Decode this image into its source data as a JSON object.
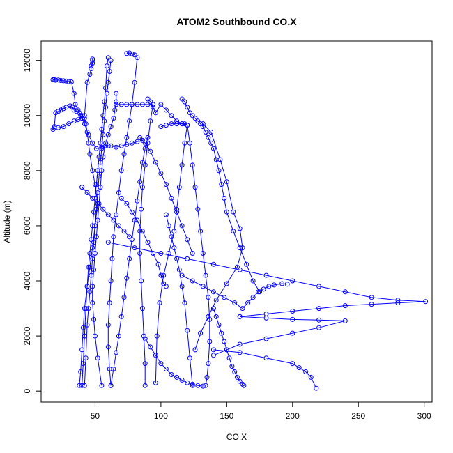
{
  "chart_data": {
    "type": "line",
    "title": "ATOM2 Southbound CO.X",
    "xlabel": "CO.X",
    "ylabel": "Altitude (m)",
    "xlim": [
      9,
      306
    ],
    "ylim": [
      -400,
      12700
    ],
    "x_ticks": [
      50,
      100,
      150,
      200,
      250,
      300
    ],
    "y_ticks": [
      0,
      2000,
      4000,
      6000,
      8000,
      10000,
      12000
    ],
    "grid": false,
    "legend": "none",
    "line_color": "#0000ff",
    "marker": "open-circle",
    "series": [
      {
        "x": [
          38,
          39,
          40,
          41,
          42,
          44,
          46,
          48,
          50,
          52,
          50,
          48,
          46,
          45,
          44,
          43,
          42,
          40,
          38,
          36,
          34,
          33,
          31,
          28,
          26,
          24,
          22,
          20,
          19,
          18,
          19,
          22,
          26,
          30,
          34,
          37,
          40,
          42,
          44,
          46,
          47,
          47,
          48,
          48,
          48
        ],
        "y": [
          200,
          700,
          1500,
          2300,
          3000,
          3800,
          4500,
          5200,
          6000,
          6800,
          7500,
          8000,
          8600,
          9000,
          9400,
          9700,
          9900,
          10000,
          10100,
          10150,
          10200,
          10300,
          10350,
          10300,
          10250,
          10200,
          10150,
          10100,
          9600,
          9500,
          9550,
          9560,
          9600,
          9700,
          9800,
          9850,
          9900,
          10000,
          11200,
          11500,
          11700,
          11800,
          11900,
          12000,
          12050
        ]
      },
      {
        "x": [
          18,
          19,
          20,
          22,
          24,
          26,
          28,
          30,
          32,
          34,
          35,
          37,
          39,
          42,
          45,
          48,
          51,
          55,
          58,
          60
        ],
        "y": [
          11300,
          11300,
          11280,
          11290,
          11270,
          11260,
          11250,
          11230,
          11220,
          10800,
          10400,
          10200,
          10000,
          9700,
          9300,
          9000,
          8800,
          8850,
          8900,
          8900
        ]
      },
      {
        "x": [
          60,
          59,
          58,
          57,
          56,
          55,
          54,
          53,
          52,
          51,
          50,
          49,
          48,
          47,
          46,
          45,
          44,
          43,
          42,
          41,
          40
        ],
        "y": [
          12100,
          11800,
          11000,
          10500,
          10000,
          9500,
          9000,
          8500,
          8000,
          7500,
          7000,
          6500,
          6000,
          5500,
          5000,
          4500,
          3800,
          3000,
          2000,
          1000,
          200
        ]
      },
      {
        "x": [
          62,
          61,
          60,
          59,
          58,
          57,
          56,
          55,
          54,
          53,
          52,
          51,
          50,
          49,
          48,
          47,
          46,
          45,
          44,
          43,
          42
        ],
        "y": [
          12000,
          11600,
          11200,
          10800,
          10300,
          9800,
          9300,
          8800,
          8300,
          7800,
          7200,
          6600,
          6000,
          5400,
          4800,
          4200,
          3600,
          3000,
          2400,
          1200,
          200
        ]
      },
      {
        "x": [
          66,
          66,
          65,
          64,
          62,
          60,
          58,
          56,
          55,
          54,
          53,
          52,
          51,
          50,
          49,
          48,
          48,
          49,
          50,
          52,
          55
        ],
        "y": [
          10800,
          10500,
          10200,
          9900,
          9600,
          9300,
          9000,
          8500,
          8000,
          7400,
          6800,
          6200,
          5600,
          5000,
          4400,
          3800,
          3200,
          2600,
          2000,
          1200,
          200
        ]
      },
      {
        "x": [
          74,
          76,
          78,
          80,
          82,
          80,
          78,
          76,
          74,
          72,
          70,
          68,
          66,
          64,
          63,
          62,
          61,
          60,
          60,
          61,
          62
        ],
        "y": [
          12250,
          12270,
          12240,
          12200,
          12100,
          11200,
          10400,
          9800,
          9200,
          8600,
          8000,
          7200,
          6400,
          5600,
          4800,
          4000,
          3200,
          2400,
          1600,
          800,
          200
        ]
      },
      {
        "x": [
          58,
          62,
          66,
          70,
          74,
          78,
          82,
          86,
          90,
          88,
          86,
          84,
          82,
          80,
          78,
          76,
          74,
          72,
          70,
          68,
          66,
          64,
          62
        ],
        "y": [
          8900,
          8900,
          8850,
          8900,
          8950,
          9000,
          9050,
          9100,
          9200,
          8800,
          8300,
          7600,
          6900,
          6200,
          5500,
          4800,
          4100,
          3400,
          2700,
          2000,
          1400,
          800,
          200
        ]
      },
      {
        "x": [
          66,
          70,
          74,
          78,
          82,
          86,
          90,
          94,
          92,
          90,
          88,
          86,
          85,
          84,
          84,
          85,
          86,
          87,
          88,
          88
        ],
        "y": [
          10400,
          10400,
          10400,
          10400,
          10400,
          10400,
          10400,
          10400,
          9800,
          9000,
          8200,
          7400,
          6600,
          5800,
          5000,
          4000,
          3000,
          2000,
          1000,
          200
        ]
      },
      {
        "x": [
          90,
          92,
          94,
          96,
          100,
          104,
          108,
          112,
          116,
          120,
          118,
          116,
          114,
          112,
          110,
          106,
          102,
          99,
          97,
          96
        ],
        "y": [
          10600,
          10500,
          10300,
          10100,
          10400,
          10200,
          10000,
          9800,
          9700,
          9650,
          9000,
          8200,
          7400,
          6600,
          5800,
          5000,
          4200,
          3200,
          2000,
          300
        ]
      },
      {
        "x": [
          100,
          104,
          108,
          112,
          116,
          118,
          120,
          122,
          124,
          126,
          128,
          130,
          132,
          134,
          136,
          137,
          137,
          136,
          135,
          134
        ],
        "y": [
          9600,
          9650,
          9700,
          9700,
          9700,
          9700,
          9650,
          9000,
          8200,
          7400,
          6600,
          5800,
          5000,
          4200,
          3400,
          2600,
          1800,
          1000,
          500,
          200
        ]
      },
      {
        "x": [
          116,
          118,
          120,
          122,
          124,
          126,
          128,
          130,
          132,
          134,
          136,
          138,
          140,
          142,
          144,
          146,
          148,
          150,
          155,
          160,
          165,
          170,
          175
        ],
        "y": [
          10600,
          10500,
          10300,
          10100,
          10000,
          9900,
          9800,
          9700,
          9600,
          9400,
          9200,
          9000,
          8800,
          8400,
          8000,
          7500,
          7000,
          6500,
          5800,
          5200,
          4600,
          4000,
          3600
        ]
      },
      {
        "x": [
          132,
          138,
          145,
          150,
          155,
          160,
          162,
          158,
          150,
          142,
          136,
          130,
          126
        ],
        "y": [
          9700,
          9400,
          8400,
          7600,
          6500,
          5900,
          5200,
          4500,
          3900,
          3300,
          2700,
          2100,
          1500
        ]
      },
      {
        "x": [
          60,
          80,
          100,
          120,
          140,
          160,
          180,
          200,
          220,
          240,
          260,
          280,
          301,
          280,
          260,
          240,
          220,
          200,
          180,
          160
        ],
        "y": [
          5400,
          5200,
          5000,
          4800,
          4600,
          4400,
          4200,
          4000,
          3800,
          3600,
          3400,
          3300,
          3250,
          3200,
          3150,
          3100,
          3000,
          2900,
          2800,
          2700
        ]
      },
      {
        "x": [
          160,
          180,
          200,
          220,
          240,
          220,
          200,
          180,
          160,
          150,
          140
        ],
        "y": [
          2700,
          2650,
          2600,
          2580,
          2550,
          2300,
          2100,
          1900,
          1700,
          1500,
          1300
        ]
      },
      {
        "x": [
          140,
          160,
          180,
          200,
          205,
          210,
          214,
          218
        ],
        "y": [
          1500,
          1400,
          1200,
          1000,
          850,
          700,
          500,
          100
        ]
      },
      {
        "x": [
          116,
          124,
          132,
          140,
          148,
          156,
          162,
          166,
          170,
          174,
          178,
          182,
          186,
          192,
          196
        ],
        "y": [
          4200,
          4000,
          3800,
          3600,
          3400,
          3200,
          3000,
          3200,
          3400,
          3600,
          3700,
          3800,
          3850,
          3900,
          3880
        ]
      },
      {
        "x": [
          70,
          74,
          78,
          82,
          86,
          90,
          94,
          98,
          100,
          102,
          104
        ],
        "y": [
          7000,
          6800,
          6500,
          6200,
          5800,
          5400,
          5000,
          4600,
          4200,
          3900,
          3800
        ]
      },
      {
        "x": [
          88,
          92,
          96,
          100,
          104,
          108,
          112,
          116,
          120,
          124,
          128,
          132
        ],
        "y": [
          1900,
          1600,
          1300,
          1000,
          800,
          600,
          500,
          400,
          300,
          250,
          200,
          180
        ]
      },
      {
        "x": [
          104,
          106,
          108,
          110,
          112,
          114,
          116,
          118,
          120,
          122,
          124
        ],
        "y": [
          6400,
          6000,
          5600,
          5200,
          4800,
          4400,
          3800,
          3200,
          2200,
          1200,
          200
        ]
      },
      {
        "x": [
          140,
          142,
          144,
          146,
          148,
          150,
          152,
          154,
          156,
          158,
          160,
          162,
          163
        ],
        "y": [
          3000,
          2700,
          2400,
          2100,
          1800,
          1500,
          1200,
          900,
          700,
          500,
          350,
          250,
          200
        ]
      },
      {
        "x": [
          84,
          88,
          92,
          96,
          100,
          104,
          108,
          112,
          116,
          120,
          124
        ],
        "y": [
          9200,
          9000,
          8700,
          8300,
          7900,
          7500,
          7000,
          6500,
          6000,
          5500,
          5000
        ]
      },
      {
        "x": [
          40,
          44,
          48,
          52,
          56,
          60,
          64,
          68,
          72,
          76
        ],
        "y": [
          7400,
          7200,
          7000,
          6800,
          6600,
          6400,
          6200,
          6000,
          5800,
          5600
        ]
      }
    ]
  }
}
